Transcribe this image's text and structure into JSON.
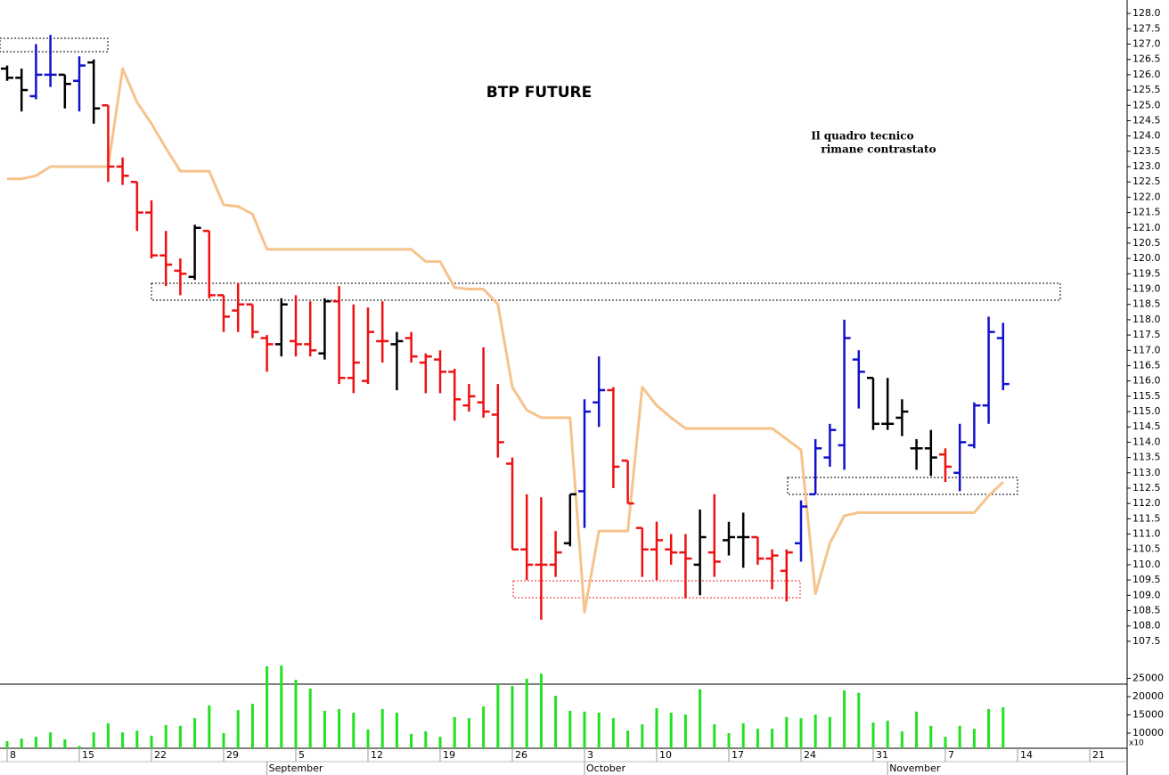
{
  "chart_data": {
    "type": "ohlc",
    "title": "BTP FUTURE",
    "annotations": [
      "Il quadro tecnico",
      "rimane contrastato"
    ],
    "categories": [
      "8",
      null,
      null,
      null,
      null,
      "15",
      null,
      null,
      null,
      null,
      "22",
      null,
      null,
      null,
      null,
      "29",
      null,
      null,
      null,
      null,
      "5",
      null,
      null,
      null,
      null,
      "12",
      null,
      null,
      null,
      null,
      "19",
      null,
      null,
      null,
      null,
      "26",
      null,
      null,
      null,
      null,
      "3",
      null,
      null,
      null,
      null,
      "10",
      null,
      null,
      null,
      null,
      "17",
      null,
      null,
      null,
      null,
      "24",
      null,
      null,
      null,
      null,
      "31",
      null,
      null,
      null,
      null,
      "7",
      null,
      null,
      null,
      null,
      "14",
      null,
      null,
      null,
      null,
      "21",
      null,
      null
    ],
    "x_group_labels": [
      "September",
      "October",
      "November"
    ],
    "open": [
      126.2,
      125.9,
      125.3,
      126.0,
      126.0,
      125.8,
      126.4,
      125.0,
      123.0,
      122.5,
      121.5,
      120.1,
      119.6,
      119.4,
      120.9,
      118.8,
      118.3,
      118.5,
      117.4,
      117.2,
      117.3,
      117.2,
      116.9,
      118.6,
      116.1,
      116.0,
      117.3,
      117.2,
      117.4,
      116.6,
      116.7,
      116.3,
      115.2,
      115.3,
      114.9,
      113.3,
      110.5,
      110.0,
      110.0,
      110.7,
      112.4,
      115.3,
      115.7,
      113.4,
      111.2,
      110.5,
      110.5,
      110.4,
      110.0,
      110.4,
      110.8,
      110.9,
      110.9,
      110.2,
      109.8,
      110.7,
      112.3,
      113.5,
      113.9,
      116.7,
      116.1,
      114.6,
      114.8,
      113.8,
      113.8,
      113.6,
      113.0,
      113.9,
      115.2,
      117.4,
      null,
      null,
      null,
      null,
      null,
      null,
      null,
      null
    ],
    "high": [
      126.3,
      126.2,
      127.0,
      127.3,
      126.0,
      126.6,
      126.5,
      125.0,
      123.3,
      122.5,
      121.9,
      120.9,
      120.0,
      121.1,
      120.9,
      118.8,
      119.2,
      118.5,
      117.5,
      118.7,
      118.8,
      118.6,
      118.7,
      119.1,
      118.5,
      118.4,
      118.6,
      117.6,
      117.6,
      116.9,
      117.0,
      116.4,
      115.9,
      117.1,
      115.9,
      113.5,
      112.3,
      112.2,
      111.1,
      112.3,
      115.4,
      116.8,
      115.8,
      113.4,
      111.2,
      111.4,
      111.0,
      111.0,
      111.8,
      112.3,
      111.4,
      111.7,
      110.9,
      110.5,
      110.5,
      112.1,
      114.1,
      114.6,
      118.0,
      117.0,
      116.1,
      116.1,
      115.4,
      114.1,
      114.4,
      113.8,
      114.6,
      115.3,
      118.1,
      117.9,
      null,
      null,
      null,
      null,
      null,
      null,
      null,
      null
    ],
    "low": [
      125.8,
      124.8,
      125.2,
      125.6,
      124.9,
      124.8,
      124.4,
      122.5,
      122.4,
      120.9,
      120.0,
      119.1,
      118.8,
      119.3,
      118.7,
      117.6,
      117.6,
      117.4,
      116.3,
      116.8,
      116.8,
      116.8,
      116.7,
      115.9,
      115.6,
      115.9,
      116.6,
      115.7,
      116.6,
      115.6,
      115.6,
      114.7,
      115.0,
      114.8,
      113.5,
      110.5,
      109.5,
      108.2,
      109.6,
      110.6,
      111.2,
      114.5,
      112.5,
      112.0,
      109.6,
      109.5,
      110.0,
      108.9,
      109.0,
      109.6,
      110.3,
      109.9,
      110.0,
      109.2,
      108.8,
      110.1,
      112.3,
      113.2,
      113.1,
      115.1,
      114.4,
      114.4,
      114.2,
      113.1,
      112.9,
      112.7,
      112.4,
      113.8,
      114.6,
      115.7,
      null,
      null,
      null,
      null,
      null,
      null,
      null,
      null
    ],
    "close": [
      125.9,
      125.5,
      126.0,
      126.0,
      125.7,
      126.3,
      124.9,
      123.0,
      122.7,
      121.5,
      120.1,
      119.8,
      119.5,
      121.0,
      118.8,
      118.1,
      118.5,
      117.6,
      117.2,
      118.5,
      117.2,
      117.0,
      118.6,
      116.1,
      116.6,
      117.6,
      117.3,
      117.3,
      116.8,
      116.8,
      116.3,
      115.4,
      115.5,
      115.0,
      114.0,
      110.5,
      110.0,
      110.0,
      110.4,
      112.3,
      115.0,
      115.7,
      113.2,
      112.0,
      110.5,
      110.8,
      110.4,
      110.2,
      110.9,
      110.1,
      110.9,
      110.9,
      110.2,
      110.3,
      110.4,
      111.9,
      113.8,
      114.4,
      117.4,
      116.3,
      114.6,
      114.6,
      115.0,
      113.8,
      113.5,
      113.2,
      114.0,
      115.2,
      117.6,
      115.9,
      null,
      null,
      null,
      null,
      null,
      null,
      null,
      null
    ],
    "bar_colors": [
      "#000000",
      "#000000",
      "#1111cc",
      "#1111cc",
      "#000000",
      "#1111cc",
      "#000000",
      "#ee1111",
      "#ee1111",
      "#ee1111",
      "#ee1111",
      "#ee1111",
      "#ee1111",
      "#000000",
      "#ee1111",
      "#ee1111",
      "#ee1111",
      "#ee1111",
      "#ee1111",
      "#000000",
      "#ee1111",
      "#ee1111",
      "#000000",
      "#ee1111",
      "#ee1111",
      "#ee1111",
      "#ee1111",
      "#000000",
      "#ee1111",
      "#ee1111",
      "#ee1111",
      "#ee1111",
      "#ee1111",
      "#ee1111",
      "#ee1111",
      "#ee1111",
      "#ee1111",
      "#ee1111",
      "#ee1111",
      "#000000",
      "#1111cc",
      "#1111cc",
      "#ee1111",
      "#ee1111",
      "#ee1111",
      "#ee1111",
      "#ee1111",
      "#ee1111",
      "#000000",
      "#ee1111",
      "#000000",
      "#000000",
      "#ee1111",
      "#ee1111",
      "#ee1111",
      "#1111cc",
      "#1111cc",
      "#1111cc",
      "#1111cc",
      "#1111cc",
      "#000000",
      "#000000",
      "#000000",
      "#000000",
      "#000000",
      "#ee1111",
      "#1111cc",
      "#1111cc",
      "#1111cc",
      "#1111cc",
      null,
      null,
      null,
      null,
      null,
      null,
      null,
      null
    ],
    "line": {
      "color": "#f5c38c",
      "values": [
        122.6,
        122.6,
        122.7,
        123.0,
        123.0,
        123.0,
        123.0,
        123.0,
        126.2,
        125.1,
        124.4,
        123.6,
        122.85,
        122.85,
        122.85,
        121.75,
        121.7,
        121.45,
        120.3,
        120.3,
        120.3,
        120.3,
        120.3,
        120.3,
        120.3,
        120.3,
        120.3,
        120.3,
        120.3,
        119.9,
        119.9,
        119.05,
        119.0,
        119.0,
        118.5,
        115.8,
        115.05,
        114.8,
        114.8,
        114.8,
        108.45,
        111.1,
        111.1,
        111.1,
        115.8,
        115.2,
        114.8,
        114.45,
        114.45,
        114.45,
        114.45,
        114.45,
        114.45,
        114.45,
        114.1,
        113.75,
        109.05,
        110.7,
        111.6,
        111.7,
        111.7,
        111.7,
        111.7,
        111.7,
        111.7,
        111.7,
        111.7,
        111.7,
        112.25,
        112.7,
        null,
        null,
        null,
        null,
        null,
        null,
        null,
        null
      ]
    },
    "ylim": [
      106.1,
      128.44
    ],
    "yticks": [
      107.5,
      {
        "value": 108,
        "label": "108.0"
      },
      108.5,
      {
        "value": 109,
        "label": "109.0"
      },
      109.5,
      {
        "value": 110,
        "label": "110.0"
      },
      110.5,
      {
        "value": 111,
        "label": "111.0"
      },
      111.5,
      {
        "value": 112,
        "label": "112.0"
      },
      112.5,
      {
        "value": 113,
        "label": "113.0"
      },
      113.5,
      {
        "value": 114,
        "label": "114.0"
      },
      114.5,
      {
        "value": 115,
        "label": "115.0"
      },
      115.5,
      {
        "value": 116,
        "label": "116.0"
      },
      116.5,
      {
        "value": 117,
        "label": "117.0"
      },
      117.5,
      {
        "value": 118,
        "label": "118.0"
      },
      118.5,
      {
        "value": 119,
        "label": "119.0"
      },
      119.5,
      {
        "value": 120,
        "label": "120.0"
      },
      120.5,
      {
        "value": 121,
        "label": "121.0"
      },
      121.5,
      {
        "value": 122,
        "label": "122.0"
      },
      122.5,
      {
        "value": 123,
        "label": "123.0"
      },
      123.5,
      {
        "value": 124,
        "label": "124.0"
      },
      124.5,
      {
        "value": 125,
        "label": "125.0"
      },
      125.5,
      {
        "value": 126,
        "label": "126.0"
      },
      126.5,
      {
        "value": 127,
        "label": "127.0"
      },
      127.5,
      {
        "value": 128,
        "label": "128.0"
      }
    ],
    "volume": {
      "type": "bar",
      "color": "#22e022",
      "unit_label": "x10",
      "values": [
        7800,
        8500,
        9000,
        10200,
        8300,
        6500,
        10200,
        12700,
        10200,
        10700,
        9300,
        12200,
        12000,
        14100,
        17600,
        10000,
        16300,
        18000,
        28300,
        28500,
        24600,
        22200,
        16100,
        16600,
        15600,
        11000,
        16600,
        15600,
        9800,
        10500,
        9000,
        14400,
        14100,
        17300,
        23400,
        22900,
        24900,
        26300,
        20200,
        16100,
        15900,
        15600,
        14100,
        10700,
        12400,
        16800,
        15600,
        15100,
        22000,
        12400,
        10000,
        12700,
        11200,
        11200,
        14400,
        14100,
        15100,
        14400,
        21700,
        21000,
        12900,
        13400,
        10500,
        15900,
        12000,
        9000,
        12000,
        11200,
        16600,
        17100,
        null,
        null,
        null,
        null,
        null,
        null,
        null,
        null
      ],
      "ylim": [
        5850,
        30000
      ],
      "yticks": [
        10000,
        15000,
        20000,
        25000
      ]
    }
  }
}
